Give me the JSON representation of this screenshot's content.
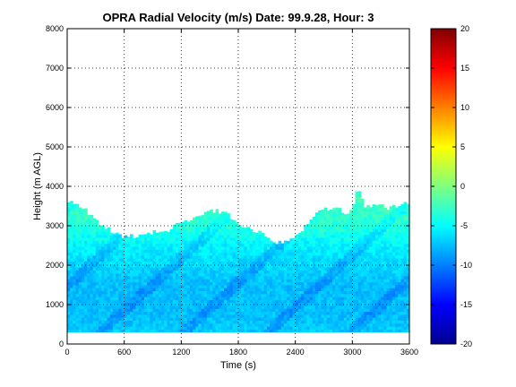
{
  "chart_data": {
    "type": "heatmap",
    "title": "OPRA Radial Velocity (m/s)  Date: 99.9.28, Hour: 3",
    "xlabel": "Time (s)",
    "ylabel": "Height (m AGL)",
    "xlim": [
      0,
      3600
    ],
    "ylim": [
      0,
      8000
    ],
    "xticks": [
      0,
      600,
      1200,
      1800,
      2400,
      3000,
      3600
    ],
    "yticks": [
      0,
      1000,
      2000,
      3000,
      4000,
      5000,
      6000,
      7000,
      8000
    ],
    "grid": true,
    "colormap": "jet",
    "colorbar": {
      "min": -20,
      "max": 20,
      "ticks": [
        -20,
        -15,
        -10,
        -5,
        0,
        5,
        10,
        15,
        20
      ]
    },
    "data_bottom_m": 300,
    "data_top_m": [
      [
        0,
        3600
      ],
      [
        120,
        3550
      ],
      [
        240,
        3300
      ],
      [
        360,
        3000
      ],
      [
        480,
        2850
      ],
      [
        600,
        2700
      ],
      [
        720,
        2750
      ],
      [
        840,
        2800
      ],
      [
        960,
        2850
      ],
      [
        1080,
        2900
      ],
      [
        1200,
        3100
      ],
      [
        1320,
        3150
      ],
      [
        1440,
        3300
      ],
      [
        1560,
        3400
      ],
      [
        1680,
        3300
      ],
      [
        1800,
        3050
      ],
      [
        1920,
        2950
      ],
      [
        2040,
        2800
      ],
      [
        2160,
        2600
      ],
      [
        2280,
        2550
      ],
      [
        2400,
        2700
      ],
      [
        2520,
        3050
      ],
      [
        2640,
        3350
      ],
      [
        2760,
        3450
      ],
      [
        2880,
        3400
      ],
      [
        2940,
        3300
      ],
      [
        3000,
        3450
      ],
      [
        3060,
        4000
      ],
      [
        3120,
        3500
      ],
      [
        3240,
        3550
      ],
      [
        3360,
        3450
      ],
      [
        3480,
        3500
      ],
      [
        3600,
        3600
      ]
    ],
    "velocity_profile_ms": [
      [
        300,
        -7
      ],
      [
        800,
        -7.5
      ],
      [
        1500,
        -7.5
      ],
      [
        2000,
        -6.5
      ],
      [
        2500,
        -5.5
      ],
      [
        3000,
        -3.5
      ],
      [
        3600,
        -2.5
      ],
      [
        4000,
        -2
      ]
    ]
  }
}
